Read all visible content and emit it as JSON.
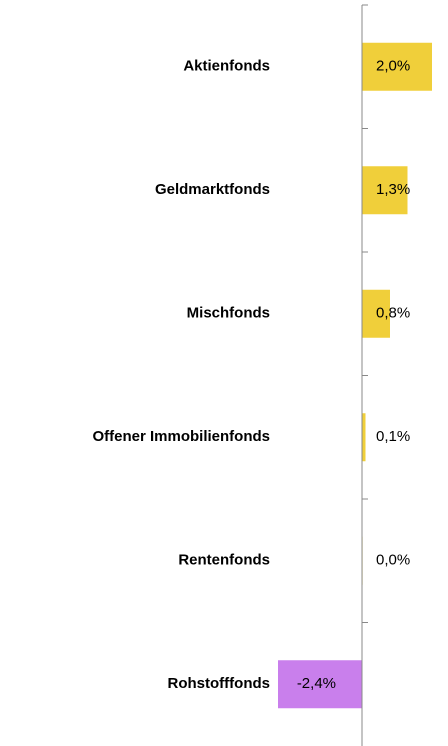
{
  "chart_data": {
    "type": "bar",
    "orientation": "horizontal",
    "categories": [
      "Aktienfonds",
      "Geldmarktfonds",
      "Mischfonds",
      "Offener Immobilienfonds",
      "Rentenfonds",
      "Rohstofffonds"
    ],
    "values": [
      2.0,
      1.3,
      0.8,
      0.1,
      0.0,
      -2.4
    ],
    "value_labels": [
      "2,0%",
      "1,3%",
      "0,8%",
      "0,1%",
      "0,0%",
      "-2,4%"
    ],
    "colors": [
      "#f0cf3a",
      "#f0cf3a",
      "#f0cf3a",
      "#f0cf3a",
      "#f0cf3a",
      "#c97fec"
    ]
  }
}
